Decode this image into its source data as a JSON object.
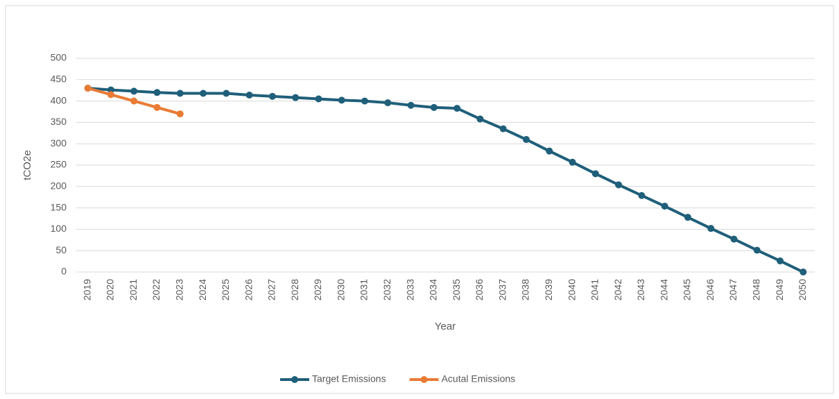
{
  "chart_data": {
    "type": "line",
    "x_label": "Year",
    "y_label": "tCO2e",
    "categories": [
      "2019",
      "2020",
      "2021",
      "2022",
      "2023",
      "2024",
      "2025",
      "2026",
      "2027",
      "2028",
      "2029",
      "2030",
      "2031",
      "2032",
      "2033",
      "2034",
      "2035",
      "2036",
      "2037",
      "2038",
      "2039",
      "2040",
      "2041",
      "2042",
      "2043",
      "2044",
      "2045",
      "2046",
      "2047",
      "2048",
      "2049",
      "2050"
    ],
    "series": [
      {
        "name": "Target Emissions",
        "color": "#1f5f7a",
        "values": [
          430,
          426,
          423,
          420,
          418,
          418,
          418,
          414,
          411,
          408,
          405,
          402,
          400,
          396,
          390,
          385,
          383,
          358,
          335,
          310,
          283,
          257,
          230,
          204,
          179,
          154,
          128,
          102,
          77,
          51,
          26,
          0
        ]
      },
      {
        "name": "Acutal Emissions",
        "color": "#e97b35",
        "values": [
          430,
          415,
          400,
          385,
          370,
          null,
          null,
          null,
          null,
          null,
          null,
          null,
          null,
          null,
          null,
          null,
          null,
          null,
          null,
          null,
          null,
          null,
          null,
          null,
          null,
          null,
          null,
          null,
          null,
          null,
          null,
          null
        ]
      }
    ],
    "ylim": [
      0,
      500
    ],
    "yticks": [
      0,
      50,
      100,
      150,
      200,
      250,
      300,
      350,
      400,
      450,
      500
    ],
    "grid": true,
    "legend": "bottom"
  }
}
